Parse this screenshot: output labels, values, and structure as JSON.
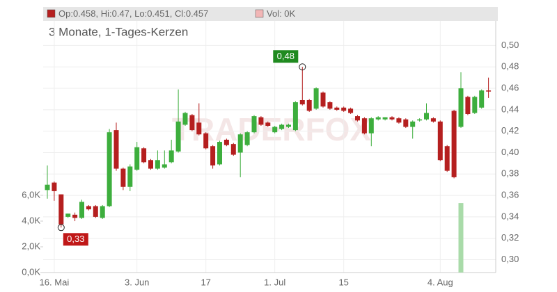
{
  "chart_data": {
    "type": "candlestick",
    "legend_ohlc": "Op:0.458, Hi:0.47, Lo:0.451, Cl:0.457",
    "legend_volume": "Vol: 0K",
    "subtitle": "3 Monate, 1-Tages-Kerzen",
    "watermark": "TRADERFOX",
    "categories": [
      null,
      "16. Mai",
      null,
      null,
      null,
      null,
      null,
      null,
      null,
      null,
      null,
      null,
      null,
      "3. Jun",
      null,
      null,
      null,
      null,
      null,
      null,
      null,
      null,
      null,
      "17",
      null,
      null,
      null,
      null,
      null,
      null,
      null,
      null,
      null,
      "1. Jul",
      null,
      null,
      null,
      null,
      null,
      null,
      null,
      null,
      null,
      "15",
      null,
      null,
      null,
      null,
      null,
      null,
      null,
      null,
      null,
      null,
      null,
      null,
      null,
      "4. Aug",
      null,
      null,
      null,
      null,
      null,
      null,
      null
    ],
    "open": [
      0.365,
      0.372,
      0.361,
      0.34,
      0.342,
      0.339,
      0.35,
      0.35,
      0.339,
      0.35,
      0.421,
      0.385,
      0.368,
      0.384,
      0.404,
      0.393,
      0.385,
      0.386,
      0.391,
      0.401,
      0.426,
      0.435,
      0.428,
      0.418,
      0.406,
      0.389,
      0.412,
      0.408,
      0.4,
      0.407,
      0.419,
      0.433,
      0.428,
      0.419,
      0.422,
      0.424,
      0.421,
      0.449,
      0.449,
      0.441,
      0.456,
      0.447,
      0.442,
      0.442,
      0.441,
      0.434,
      0.432,
      0.418,
      0.431,
      0.431,
      0.433,
      0.432,
      0.431,
      0.424,
      0.43,
      0.431,
      0.432,
      0.429,
      0.406,
      0.439,
      0.424,
      0.452,
      0.437,
      0.442,
      0.458
    ],
    "high": [
      0.388,
      0.373,
      0.361,
      0.343,
      0.344,
      0.356,
      0.351,
      0.351,
      0.351,
      0.422,
      0.428,
      0.386,
      0.389,
      0.41,
      0.405,
      0.394,
      0.402,
      0.402,
      0.412,
      0.459,
      0.438,
      0.436,
      0.446,
      0.419,
      0.407,
      0.411,
      0.413,
      0.409,
      0.418,
      0.42,
      0.435,
      0.434,
      0.429,
      0.425,
      0.427,
      0.427,
      0.448,
      0.48,
      0.45,
      0.461,
      0.457,
      0.448,
      0.443,
      0.443,
      0.442,
      0.435,
      0.433,
      0.433,
      0.434,
      0.433,
      0.434,
      0.433,
      0.432,
      0.43,
      0.432,
      0.446,
      0.433,
      0.43,
      0.407,
      0.44,
      0.475,
      0.453,
      0.453,
      0.459,
      0.47
    ],
    "low": [
      0.357,
      0.355,
      0.33,
      0.339,
      0.336,
      0.338,
      0.346,
      0.339,
      0.338,
      0.349,
      0.383,
      0.365,
      0.364,
      0.383,
      0.39,
      0.384,
      0.384,
      0.385,
      0.39,
      0.4,
      0.425,
      0.42,
      0.416,
      0.403,
      0.385,
      0.388,
      0.406,
      0.397,
      0.377,
      0.406,
      0.418,
      0.425,
      0.424,
      0.418,
      0.421,
      0.423,
      0.42,
      0.444,
      0.438,
      0.44,
      0.442,
      0.44,
      0.439,
      0.438,
      0.436,
      0.429,
      0.417,
      0.406,
      0.43,
      0.43,
      0.43,
      0.427,
      0.423,
      0.413,
      0.429,
      0.43,
      0.428,
      0.392,
      0.382,
      0.376,
      0.423,
      0.435,
      0.436,
      0.441,
      0.451
    ],
    "close": [
      0.37,
      0.364,
      0.333,
      0.343,
      0.339,
      0.354,
      0.347,
      0.34,
      0.35,
      0.419,
      0.385,
      0.368,
      0.387,
      0.405,
      0.391,
      0.385,
      0.393,
      0.389,
      0.402,
      0.429,
      0.437,
      0.421,
      0.417,
      0.404,
      0.388,
      0.41,
      0.407,
      0.398,
      0.417,
      0.419,
      0.434,
      0.426,
      0.425,
      0.424,
      0.426,
      0.426,
      0.447,
      0.445,
      0.439,
      0.46,
      0.443,
      0.441,
      0.44,
      0.439,
      0.437,
      0.43,
      0.418,
      0.432,
      0.433,
      0.433,
      0.431,
      0.428,
      0.424,
      0.429,
      0.431,
      0.437,
      0.429,
      0.393,
      0.383,
      0.377,
      0.46,
      0.436,
      0.452,
      0.458,
      0.457
    ],
    "volume": [
      0,
      0,
      0,
      0,
      0,
      0,
      0,
      0,
      0,
      0,
      0,
      0,
      0,
      0,
      0,
      0,
      0,
      0,
      0,
      0,
      0,
      0,
      0,
      0,
      0,
      0,
      0,
      0,
      0,
      0,
      0,
      0,
      0,
      0,
      0,
      0,
      0,
      0,
      0,
      0,
      0,
      0,
      0,
      0,
      0,
      0,
      0,
      0,
      0,
      0,
      0,
      0,
      0,
      0,
      0,
      0,
      0,
      0,
      0,
      0,
      5.4,
      0,
      0,
      0,
      0
    ],
    "up_color": "#3dae3d",
    "down_color": "#b51f1f",
    "volume_color": "#a9dba9",
    "ylim": [
      0.288,
      0.523
    ],
    "yticks": [
      {
        "value": 0.3,
        "label": "0,30"
      },
      {
        "value": 0.32,
        "label": "0,32"
      },
      {
        "value": 0.34,
        "label": "0,34"
      },
      {
        "value": 0.36,
        "label": "0,36"
      },
      {
        "value": 0.38,
        "label": "0,38"
      },
      {
        "value": 0.4,
        "label": "0,40"
      },
      {
        "value": 0.42,
        "label": "0,42"
      },
      {
        "value": 0.44,
        "label": "0,44"
      },
      {
        "value": 0.46,
        "label": "0,46"
      },
      {
        "value": 0.48,
        "label": "0,48"
      },
      {
        "value": 0.5,
        "label": "0,50"
      }
    ],
    "y2lim": [
      0,
      6
    ],
    "y2ticks": [
      {
        "value": 0,
        "label": "0,0K"
      },
      {
        "value": 2,
        "label": "2,0K"
      },
      {
        "value": 4,
        "label": "4,0K"
      },
      {
        "value": 6,
        "label": "6,0K"
      }
    ],
    "annotations": [
      {
        "text": "0,48",
        "index": 37,
        "value": 0.48
      },
      {
        "text": "0,33",
        "index": 2,
        "value": 0.33
      }
    ],
    "grid": true
  }
}
